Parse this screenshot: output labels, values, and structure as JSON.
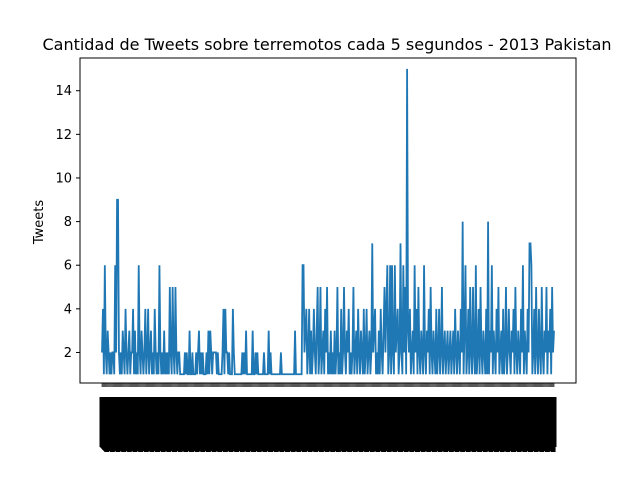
{
  "chart_data": {
    "type": "line",
    "title": "Cantidad de Tweets sobre terremotos cada 5 segundos - 2013 Pakistan",
    "ylabel": "Tweets",
    "xlabel": "",
    "ylim": [
      0.6,
      15.5
    ],
    "yticks": [
      2,
      4,
      6,
      8,
      10,
      12,
      14
    ],
    "series_color": "#1f77b4",
    "grid": false,
    "legend": "none",
    "series": [
      {
        "values": [
          2,
          4,
          1,
          6,
          2,
          1,
          3,
          2,
          1,
          2,
          1,
          2,
          2,
          1,
          6,
          2,
          9,
          9,
          2,
          1,
          2,
          1,
          3,
          2,
          1,
          4,
          2,
          1,
          2,
          3,
          1,
          2,
          2,
          4,
          1,
          3,
          1,
          2,
          1,
          6,
          2,
          1,
          3,
          2,
          1,
          2,
          4,
          1,
          2,
          4,
          1,
          2,
          3,
          1,
          2,
          1,
          4,
          2,
          1,
          2,
          1,
          6,
          2,
          1,
          2,
          1,
          3,
          1,
          2,
          1,
          2,
          1,
          5,
          2,
          1,
          5,
          2,
          1,
          5,
          2,
          1,
          2,
          2,
          1,
          1,
          1,
          1,
          1,
          2,
          1,
          2,
          1,
          1,
          3,
          1,
          1,
          2,
          1,
          1,
          1,
          2,
          1,
          2,
          3,
          1,
          2,
          1,
          2,
          1,
          1,
          1,
          2,
          1,
          3,
          1,
          3,
          2,
          1,
          2,
          2,
          2,
          2,
          1,
          2,
          1,
          1,
          1,
          1,
          2,
          4,
          1,
          4,
          2,
          2,
          1,
          2,
          1,
          1,
          1,
          4,
          2,
          1,
          1,
          1,
          1,
          1,
          1,
          1,
          1,
          2,
          1,
          2,
          1,
          3,
          1,
          1,
          1,
          1,
          1,
          1,
          3,
          1,
          1,
          2,
          1,
          2,
          1,
          1,
          1,
          1,
          1,
          1,
          2,
          1,
          1,
          1,
          1,
          3,
          1,
          2,
          1,
          1,
          1,
          1,
          1,
          1,
          1,
          1,
          1,
          1,
          2,
          1,
          1,
          1,
          1,
          1,
          1,
          1,
          1,
          1,
          1,
          1,
          1,
          1,
          1,
          3,
          1,
          1,
          1,
          1,
          1,
          1,
          1,
          6,
          6,
          2,
          3,
          4,
          1,
          2,
          4,
          1,
          3,
          1,
          2,
          4,
          2,
          1,
          3,
          5,
          1,
          2,
          5,
          1,
          2,
          3,
          1,
          4,
          2,
          5,
          1,
          2,
          1,
          3,
          1,
          2,
          1,
          3,
          1,
          2,
          5,
          1,
          2,
          1,
          4,
          1,
          2,
          5,
          2,
          1,
          3,
          2,
          4,
          1,
          2,
          1,
          2,
          5,
          1,
          2,
          3,
          1,
          4,
          2,
          1,
          3,
          2,
          1,
          4,
          1,
          2,
          4,
          1,
          2,
          3,
          1,
          2,
          7,
          2,
          3,
          4,
          1,
          2,
          1,
          3,
          1,
          4,
          2,
          1,
          3,
          5,
          2,
          4,
          6,
          1,
          2,
          6,
          1,
          6,
          2,
          1,
          6,
          2,
          3,
          4,
          1,
          2,
          7,
          2,
          1,
          6,
          2,
          5,
          1,
          15,
          3,
          2,
          4,
          1,
          2,
          3,
          1,
          6,
          2,
          4,
          1,
          5,
          2,
          1,
          3,
          2,
          1,
          6,
          2,
          1,
          3,
          2,
          4,
          1,
          5,
          2,
          1,
          3,
          2,
          1,
          4,
          1,
          2,
          4,
          1,
          2,
          5,
          1,
          2,
          3,
          1,
          2,
          3,
          1,
          2,
          3,
          1,
          2,
          3,
          1,
          4,
          2,
          1,
          3,
          2,
          1,
          4,
          2,
          8,
          1,
          3,
          6,
          1,
          2,
          4,
          1,
          5,
          2,
          1,
          5,
          2,
          1,
          6,
          1,
          2,
          4,
          1,
          5,
          2,
          1,
          3,
          2,
          1,
          4,
          1,
          8,
          1,
          3,
          2,
          6,
          1,
          3,
          2,
          1,
          4,
          2,
          5,
          1,
          2,
          3,
          1,
          4,
          1,
          2,
          5,
          1,
          2,
          4,
          2,
          1,
          3,
          2,
          4,
          1,
          5,
          2,
          1,
          3,
          2,
          1,
          4,
          2,
          6,
          1,
          3,
          2,
          1,
          4,
          2,
          7,
          7,
          6,
          1,
          2,
          4,
          1,
          5,
          2,
          1,
          4,
          2,
          1,
          5,
          2,
          1,
          3,
          2,
          5,
          1,
          3,
          2,
          4,
          1,
          5,
          2,
          3
        ]
      }
    ]
  }
}
